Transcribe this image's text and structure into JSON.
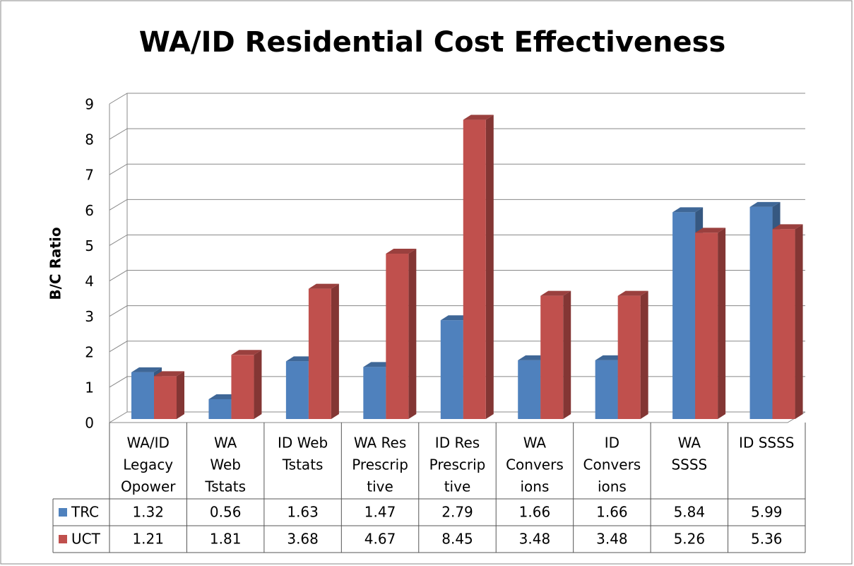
{
  "chart_data": {
    "type": "bar3d",
    "title": "WA/ID Residential Cost Effectiveness",
    "y_label": "B/C Ratio",
    "categories": [
      [
        "WA/ID",
        "Legacy",
        "Opower"
      ],
      [
        "WA",
        "Web",
        "Tstats"
      ],
      [
        "ID Web",
        "Tstats"
      ],
      [
        "WA Res",
        "Prescrip",
        "tive"
      ],
      [
        "ID Res",
        "Prescrip",
        "tive"
      ],
      [
        "WA",
        "Convers",
        "ions"
      ],
      [
        "ID",
        "Convers",
        "ions"
      ],
      [
        "WA",
        "SSSS"
      ],
      [
        "ID SSSS"
      ]
    ],
    "series": [
      {
        "name": "TRC",
        "color": "#4f81bd",
        "values": [
          1.32,
          0.56,
          1.63,
          1.47,
          2.79,
          1.66,
          1.66,
          5.84,
          5.99
        ]
      },
      {
        "name": "UCT",
        "color": "#c0504d",
        "values": [
          1.21,
          1.81,
          3.68,
          4.67,
          8.45,
          3.48,
          3.48,
          5.26,
          5.36
        ]
      }
    ],
    "ylim": [
      0,
      9
    ],
    "yticks": [
      0,
      1,
      2,
      3,
      4,
      5,
      6,
      7,
      8,
      9
    ],
    "grid": true,
    "data_table": true
  }
}
